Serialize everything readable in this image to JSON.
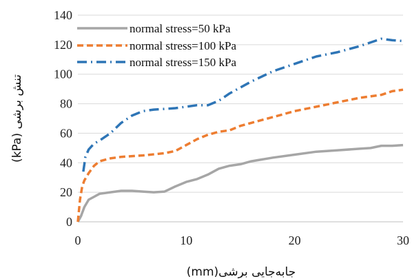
{
  "chart_data": {
    "type": "line",
    "xlabel": "جابه‌جایی برشی(mm)",
    "ylabel": "تنش برشی (kPa)",
    "xlim": [
      0,
      30
    ],
    "ylim": [
      0,
      140
    ],
    "xticks": [
      0,
      10,
      20,
      30
    ],
    "yticks": [
      0,
      20,
      40,
      60,
      80,
      100,
      120,
      140
    ],
    "grid": "horizontal",
    "legend_position": "top-left",
    "series": [
      {
        "name": "normal stress=50 kPa",
        "color": "#a6a6a6",
        "style": "solid",
        "points": [
          [
            0,
            0
          ],
          [
            0.3,
            4
          ],
          [
            0.6,
            10
          ],
          [
            1,
            15
          ],
          [
            1.5,
            17
          ],
          [
            2,
            19
          ],
          [
            3,
            20
          ],
          [
            4,
            21
          ],
          [
            5,
            21
          ],
          [
            6,
            20.5
          ],
          [
            7,
            20
          ],
          [
            8,
            20.5
          ],
          [
            9,
            24
          ],
          [
            10,
            27
          ],
          [
            11,
            29
          ],
          [
            12,
            32
          ],
          [
            13,
            36
          ],
          [
            14,
            38
          ],
          [
            15,
            39
          ],
          [
            16,
            41
          ],
          [
            18,
            43.5
          ],
          [
            20,
            45.5
          ],
          [
            22,
            47.5
          ],
          [
            24,
            48.5
          ],
          [
            26,
            49.5
          ],
          [
            27,
            50
          ],
          [
            28,
            51.5
          ],
          [
            29,
            51.5
          ],
          [
            30,
            52
          ]
        ]
      },
      {
        "name": "normal stress=100 kPa",
        "color": "#ed7d31",
        "style": "dashed",
        "points": [
          [
            0,
            0
          ],
          [
            0.2,
            15
          ],
          [
            0.4,
            24
          ],
          [
            0.6,
            28
          ],
          [
            1,
            33
          ],
          [
            1.5,
            38
          ],
          [
            2,
            41
          ],
          [
            3,
            43
          ],
          [
            4,
            44
          ],
          [
            6,
            45
          ],
          [
            8,
            46.5
          ],
          [
            9,
            48
          ],
          [
            10,
            52
          ],
          [
            11,
            56
          ],
          [
            12,
            59
          ],
          [
            13,
            61
          ],
          [
            14,
            62
          ],
          [
            15,
            65
          ],
          [
            16,
            67
          ],
          [
            18,
            71
          ],
          [
            20,
            75
          ],
          [
            22,
            78
          ],
          [
            24,
            81
          ],
          [
            26,
            84
          ],
          [
            28,
            86
          ],
          [
            29,
            88.5
          ],
          [
            30,
            89.5
          ]
        ]
      },
      {
        "name": "normal stress=150 kPa",
        "color": "#2e75b6",
        "style": "dash-dot",
        "points": [
          [
            0.5,
            34
          ],
          [
            0.7,
            44
          ],
          [
            1,
            49
          ],
          [
            1.5,
            53
          ],
          [
            2,
            55
          ],
          [
            3,
            60
          ],
          [
            4,
            67
          ],
          [
            5,
            72
          ],
          [
            6,
            75
          ],
          [
            7,
            76
          ],
          [
            8,
            76.5
          ],
          [
            9,
            77
          ],
          [
            10,
            78
          ],
          [
            11,
            79
          ],
          [
            12,
            79
          ],
          [
            13,
            82
          ],
          [
            14,
            87
          ],
          [
            16,
            95
          ],
          [
            18,
            102
          ],
          [
            20,
            107
          ],
          [
            22,
            112
          ],
          [
            24,
            115
          ],
          [
            26,
            119
          ],
          [
            28,
            124
          ],
          [
            29,
            123
          ],
          [
            30,
            122.5
          ]
        ]
      }
    ]
  }
}
